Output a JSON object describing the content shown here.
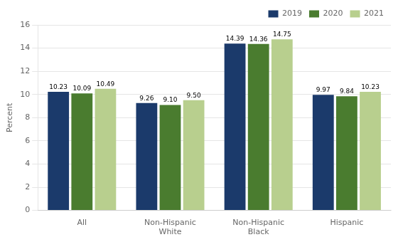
{
  "chart_data": {
    "type": "bar",
    "categories": [
      "All",
      "Non-Hispanic\nWhite",
      "Non-Hispanic\nBlack",
      "Hispanic"
    ],
    "series": [
      {
        "name": "2019",
        "color": "#1b3a6b",
        "values": [
          10.23,
          9.26,
          14.39,
          9.97
        ],
        "value_labels": [
          "10.23",
          "9.26",
          "14.39",
          "9.97"
        ]
      },
      {
        "name": "2020",
        "color": "#4a7c2f",
        "values": [
          10.09,
          9.1,
          14.36,
          9.84
        ],
        "value_labels": [
          "10.09",
          "9.10",
          "14.36",
          "9.84"
        ]
      },
      {
        "name": "2021",
        "color": "#b8cf8e",
        "values": [
          10.49,
          9.5,
          14.75,
          10.23
        ],
        "value_labels": [
          "10.49",
          "9.50",
          "14.75",
          "10.23"
        ]
      }
    ],
    "ylabel": "Percent",
    "ylim": [
      0,
      16
    ],
    "yticks": [
      0,
      2,
      4,
      6,
      8,
      10,
      12,
      14,
      16
    ],
    "grid": true,
    "legend": "upper right",
    "data_labels": true
  }
}
